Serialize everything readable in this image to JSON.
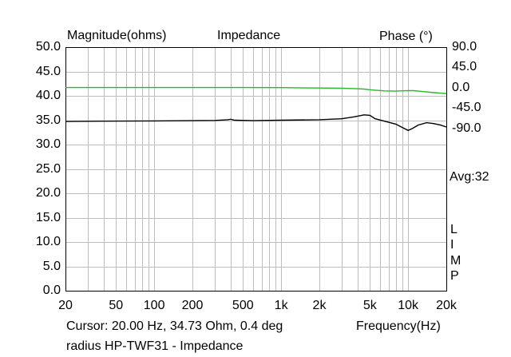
{
  "chart_data": {
    "type": "line",
    "title": "Impedance",
    "ylabel_left": "Magnitude(ohms)",
    "ylabel_right": "Phase (°)",
    "xlabel": "Frequency(Hz)",
    "x_scale": "log",
    "xlim": [
      20,
      20000
    ],
    "ylim_left": [
      0,
      50
    ],
    "ylim_right": [
      -450,
      90
    ],
    "left_ticks": [
      "0.0",
      "5.0",
      "10.0",
      "15.0",
      "20.0",
      "25.0",
      "30.0",
      "35.0",
      "40.0",
      "45.0",
      "50.0"
    ],
    "right_ticks": [
      {
        "value": 90,
        "label": "90.0"
      },
      {
        "value": 45,
        "label": "45.0"
      },
      {
        "value": 0,
        "label": "0.0"
      },
      {
        "value": -45,
        "label": "-45.0"
      },
      {
        "value": -90,
        "label": "-90.0"
      }
    ],
    "x_ticks": [
      {
        "value": 20,
        "label": "20"
      },
      {
        "value": 50,
        "label": "50"
      },
      {
        "value": 100,
        "label": "100"
      },
      {
        "value": 200,
        "label": "200"
      },
      {
        "value": 500,
        "label": "500"
      },
      {
        "value": 1000,
        "label": "1k"
      },
      {
        "value": 2000,
        "label": "2k"
      },
      {
        "value": 5000,
        "label": "5k"
      },
      {
        "value": 10000,
        "label": "10k"
      },
      {
        "value": 20000,
        "label": "20k"
      }
    ],
    "minor_grid_x": [
      30,
      40,
      60,
      70,
      80,
      90,
      300,
      400,
      600,
      700,
      800,
      900,
      3000,
      4000,
      6000,
      7000,
      8000,
      9000
    ],
    "grid": true,
    "series": [
      {
        "name": "Impedance magnitude",
        "axis": "left",
        "color": "#000000",
        "points": [
          [
            20,
            34.73
          ],
          [
            40,
            34.8
          ],
          [
            100,
            34.85
          ],
          [
            200,
            34.9
          ],
          [
            300,
            34.95
          ],
          [
            380,
            35.1
          ],
          [
            400,
            35.2
          ],
          [
            430,
            35.0
          ],
          [
            600,
            34.9
          ],
          [
            1000,
            35.0
          ],
          [
            2000,
            35.1
          ],
          [
            3000,
            35.3
          ],
          [
            3800,
            35.7
          ],
          [
            4500,
            36.1
          ],
          [
            5000,
            36.0
          ],
          [
            5500,
            35.3
          ],
          [
            6500,
            34.8
          ],
          [
            8000,
            34.2
          ],
          [
            9000,
            33.5
          ],
          [
            10000,
            32.9
          ],
          [
            10800,
            33.3
          ],
          [
            12000,
            34.0
          ],
          [
            14000,
            34.5
          ],
          [
            16000,
            34.3
          ],
          [
            18000,
            34.0
          ],
          [
            20000,
            33.6
          ]
        ]
      },
      {
        "name": "Phase",
        "axis": "right",
        "color": "#2db52d",
        "points": [
          [
            20,
            0.4
          ],
          [
            500,
            0.4
          ],
          [
            1000,
            0.2
          ],
          [
            1500,
            -0.5
          ],
          [
            2000,
            -0.7
          ],
          [
            3000,
            -1.2
          ],
          [
            3800,
            -1.8
          ],
          [
            4500,
            -3
          ],
          [
            5000,
            -4.5
          ],
          [
            5500,
            -5.5
          ],
          [
            6500,
            -7
          ],
          [
            8000,
            -7.5
          ],
          [
            10000,
            -6.5
          ],
          [
            11000,
            -6.5
          ],
          [
            13000,
            -8.5
          ],
          [
            16000,
            -11
          ],
          [
            20000,
            -13
          ]
        ]
      }
    ],
    "annotations": {
      "average": "Avg:32",
      "limp": [
        "L",
        "I",
        "M",
        "P"
      ],
      "cursor": "Cursor: 20.00 Hz, 34.73 Ohm, 0.4 deg",
      "caption": "radius HP-TWF31 - Impedance"
    }
  }
}
